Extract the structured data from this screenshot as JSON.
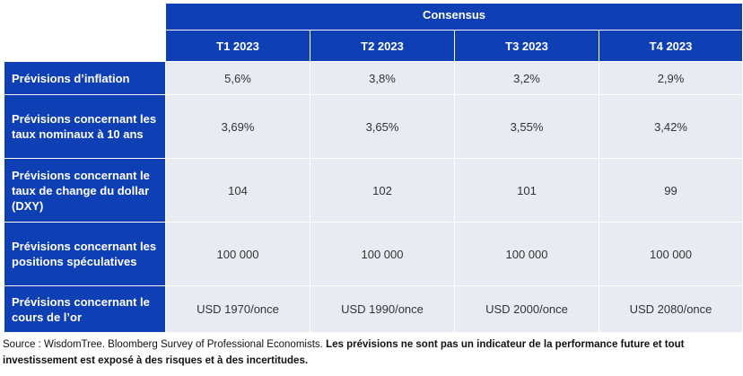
{
  "table": {
    "group_header": "Consensus",
    "columns": [
      "T1 2023",
      "T2 2023",
      "T3 2023",
      "T4 2023"
    ],
    "rows": [
      {
        "label": "Prévisions d’inflation",
        "values": [
          "5,6%",
          "3,8%",
          "3,2%",
          "2,9%"
        ]
      },
      {
        "label": "Prévisions concernant les taux nominaux à 10 ans",
        "values": [
          "3,69%",
          "3,65%",
          "3,55%",
          "3,42%"
        ]
      },
      {
        "label": "Prévisions concernant le taux de change du dollar (DXY)",
        "values": [
          "104",
          "102",
          "101",
          "99"
        ]
      },
      {
        "label": "Prévisions concernant les positions spéculatives",
        "values": [
          "100 000",
          "100 000",
          "100 000",
          "100 000"
        ]
      },
      {
        "label": "Prévisions concernant le cours de l’or",
        "values": [
          "USD 1970/once",
          "USD 1990/once",
          "USD 2000/once",
          "USD 2080/once"
        ]
      }
    ]
  },
  "footer": {
    "source_plain": "Source : WisdomTree. Bloomberg Survey of Professional Economists. ",
    "source_bold": "Les prévisions ne sont pas un indicateur de la performance future et tout investissement est exposé à des risques et à des incertitudes."
  },
  "colors": {
    "header_blue": "#0f3fb5",
    "cell_grey": "#e8ecf2"
  }
}
